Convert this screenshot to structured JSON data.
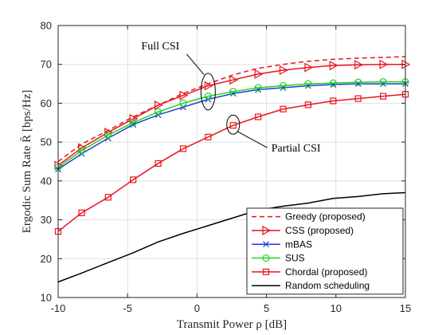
{
  "chart_data": {
    "type": "line",
    "xlabel": "Transmit Power ρ [dB]",
    "ylabel": "Ergodic Sum Rate R̄ [bps/Hz]",
    "xlim": [
      -10,
      15
    ],
    "ylim": [
      10,
      80
    ],
    "xticks": [
      -10,
      -5,
      0,
      5,
      10,
      15
    ],
    "xtick_labels": [
      "-10",
      "-5",
      "0",
      "5",
      "10",
      "15"
    ],
    "yticks": [
      10,
      20,
      30,
      40,
      50,
      60,
      70,
      80
    ],
    "ytick_labels": [
      "10",
      "20",
      "30",
      "40",
      "50",
      "60",
      "70",
      "80"
    ],
    "grid": true,
    "legend_position": "bottom-right",
    "annotations": [
      {
        "text": "Full CSI",
        "target_x": 0.8,
        "target_y": 63
      },
      {
        "text": "Partial CSI",
        "target_x": 2.6,
        "target_y": 54.5
      }
    ],
    "series": [
      {
        "name": "Greedy (proposed)",
        "color": "#e8141e",
        "line": "dashed",
        "marker": "none",
        "x": [
          -10,
          -8.3,
          -6.4,
          -4.6,
          -2.8,
          -1,
          0.8,
          2.6,
          4.4,
          6.2,
          8,
          9.8,
          11.6,
          13.4,
          15
        ],
        "y": [
          45.0,
          49.5,
          53.0,
          56.5,
          59.5,
          62.5,
          65.0,
          67.3,
          69.0,
          70.0,
          70.8,
          71.3,
          71.6,
          71.8,
          72.0
        ]
      },
      {
        "name": "CSS (proposed)",
        "color": "#e8141e",
        "line": "solid",
        "marker": "triangle-right",
        "x": [
          -10,
          -8.3,
          -6.4,
          -4.6,
          -2.8,
          -1,
          0.8,
          2.6,
          4.4,
          6.2,
          8,
          9.8,
          11.6,
          13.4,
          15
        ],
        "y": [
          44.0,
          48.5,
          52.5,
          56.0,
          59.5,
          62.0,
          64.5,
          66.0,
          67.5,
          68.5,
          69.2,
          69.7,
          69.9,
          70.0,
          70.0
        ]
      },
      {
        "name": "mBAS",
        "color": "#1f3fd1",
        "line": "solid",
        "marker": "x",
        "x": [
          -10,
          -8.3,
          -6.4,
          -4.6,
          -2.8,
          -1,
          0.8,
          2.6,
          4.4,
          6.2,
          8,
          9.8,
          11.6,
          13.4,
          15
        ],
        "y": [
          43.0,
          47.0,
          51.0,
          54.5,
          57.0,
          59.0,
          61.0,
          62.5,
          63.5,
          64.0,
          64.5,
          64.8,
          65.0,
          65.0,
          65.0
        ]
      },
      {
        "name": "SUS",
        "color": "#22d422",
        "line": "solid",
        "marker": "circle",
        "x": [
          -10,
          -8.3,
          -6.4,
          -4.6,
          -2.8,
          -1,
          0.8,
          2.6,
          4.4,
          6.2,
          8,
          9.8,
          11.6,
          13.4,
          15
        ],
        "y": [
          43.5,
          47.8,
          51.8,
          55.0,
          57.8,
          60.0,
          61.8,
          63.0,
          64.0,
          64.5,
          65.0,
          65.2,
          65.4,
          65.5,
          65.5
        ]
      },
      {
        "name": "Chordal (proposed)",
        "color": "#e8141e",
        "line": "solid",
        "marker": "square",
        "x": [
          -10,
          -8.3,
          -6.4,
          -4.6,
          -2.8,
          -1,
          0.8,
          2.6,
          4.4,
          6.2,
          8,
          9.8,
          11.6,
          13.4,
          15
        ],
        "y": [
          27.0,
          31.8,
          35.8,
          40.3,
          44.5,
          48.3,
          51.3,
          54.3,
          56.5,
          58.5,
          59.6,
          60.6,
          61.2,
          61.8,
          62.3
        ]
      },
      {
        "name": "Random scheduling",
        "color": "#000000",
        "line": "solid",
        "marker": "none",
        "x": [
          -10,
          -8.3,
          -6.4,
          -4.6,
          -2.8,
          -1,
          0.8,
          2.6,
          4.4,
          6.2,
          8,
          9.8,
          11.6,
          13.4,
          15
        ],
        "y": [
          14.0,
          16.3,
          19.0,
          21.5,
          24.3,
          26.5,
          28.5,
          30.5,
          32.5,
          33.5,
          34.3,
          35.5,
          36.0,
          36.7,
          37.0
        ]
      }
    ]
  }
}
